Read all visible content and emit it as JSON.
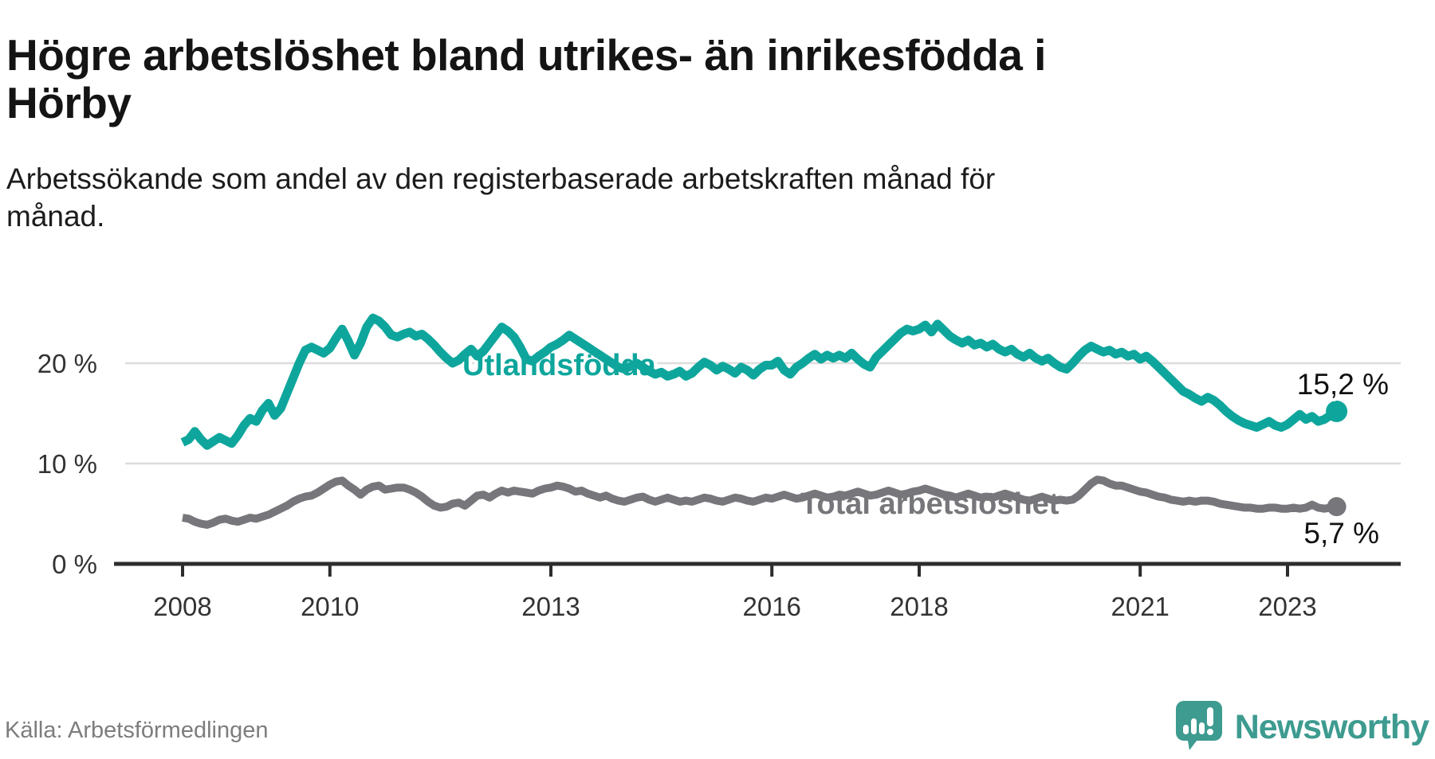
{
  "header": {
    "title": "Högre arbetslöshet bland utrikes- än inrikesfödda i\nHörby",
    "subtitle": "Arbetssökande som andel av den registerbaserade arbetskraften månad för\nmånad."
  },
  "footer": {
    "source": "Källa: Arbetsförmedlingen",
    "brand": "Newsworthy"
  },
  "colors": {
    "foreign_born_line": "#0ea69c",
    "total_line": "#76767b",
    "gridline": "#dcdcdc",
    "axis": "#2d2d2d",
    "tick_label": "#333333",
    "end_label": "#111111",
    "logo_teal": "#3d9b90"
  },
  "chart_data": {
    "type": "line",
    "title": "Högre arbetslöshet bland utrikes- än inrikesfödda i Hörby",
    "subtitle": "Arbetssökande som andel av den registerbaserade arbetskraften månad för månad.",
    "xlabel": "",
    "ylabel": "",
    "grid": true,
    "legend_position": "inline-labels",
    "x_start_year": 2008,
    "x_months_per_step": 1,
    "x_ticks": [
      2008,
      2010,
      2013,
      2016,
      2018,
      2021,
      2023
    ],
    "y_ticks": [
      {
        "value": 0,
        "label": "0 %"
      },
      {
        "value": 10,
        "label": "10 %"
      },
      {
        "value": 20,
        "label": "20 %"
      }
    ],
    "ylim": [
      0,
      29
    ],
    "series": [
      {
        "name": "Utlandsfödda",
        "color": "#0ea69c",
        "end_label": "15,2 %",
        "end_value": 15.2,
        "values": [
          12.1,
          12.4,
          13.2,
          12.4,
          11.8,
          12.2,
          12.6,
          12.3,
          12.0,
          12.8,
          13.8,
          14.5,
          14.2,
          15.3,
          16.0,
          14.8,
          15.5,
          17.0,
          18.5,
          20.0,
          21.3,
          21.6,
          21.3,
          21.0,
          21.5,
          22.5,
          23.4,
          22.2,
          20.8,
          22.0,
          23.6,
          24.5,
          24.2,
          23.6,
          22.8,
          22.6,
          22.9,
          23.1,
          22.7,
          22.9,
          22.4,
          21.8,
          21.1,
          20.5,
          20.0,
          20.3,
          20.9,
          21.4,
          20.7,
          21.2,
          22.0,
          22.8,
          23.6,
          23.2,
          22.6,
          21.6,
          20.4,
          20.2,
          20.7,
          21.1,
          21.6,
          21.9,
          22.3,
          22.8,
          22.4,
          22.0,
          21.6,
          21.2,
          20.8,
          20.4,
          20.0,
          19.6,
          19.4,
          19.7,
          20.0,
          19.6,
          19.2,
          18.9,
          19.1,
          18.7,
          18.9,
          19.2,
          18.7,
          19.0,
          19.6,
          20.1,
          19.8,
          19.3,
          19.7,
          19.4,
          19.0,
          19.6,
          19.3,
          18.8,
          19.4,
          19.8,
          19.8,
          20.2,
          19.3,
          18.9,
          19.6,
          20.0,
          20.5,
          20.9,
          20.4,
          20.8,
          20.5,
          20.8,
          20.5,
          21.0,
          20.4,
          19.9,
          19.6,
          20.6,
          21.2,
          21.8,
          22.4,
          23.0,
          23.4,
          23.2,
          23.4,
          23.8,
          23.1,
          23.9,
          23.3,
          22.7,
          22.3,
          22.0,
          22.3,
          21.8,
          22.0,
          21.6,
          21.9,
          21.4,
          21.1,
          21.4,
          20.9,
          20.6,
          21.0,
          20.5,
          20.2,
          20.5,
          20.0,
          19.6,
          19.4,
          20.0,
          20.7,
          21.3,
          21.7,
          21.4,
          21.1,
          21.3,
          20.9,
          21.1,
          20.7,
          20.9,
          20.4,
          20.7,
          20.2,
          19.6,
          19.0,
          18.4,
          17.8,
          17.2,
          16.9,
          16.5,
          16.2,
          16.6,
          16.3,
          15.8,
          15.2,
          14.7,
          14.3,
          14.0,
          13.8,
          13.6,
          13.9,
          14.2,
          13.8,
          13.6,
          13.9,
          14.4,
          14.9,
          14.4,
          14.7,
          14.2,
          14.4,
          14.8,
          15.2
        ]
      },
      {
        "name": "Total arbetslöshet",
        "color": "#76767b",
        "end_label": "5,7 %",
        "end_value": 5.7,
        "values": [
          4.6,
          4.5,
          4.2,
          4.0,
          3.9,
          4.1,
          4.4,
          4.5,
          4.3,
          4.2,
          4.4,
          4.6,
          4.5,
          4.7,
          4.9,
          5.2,
          5.5,
          5.8,
          6.2,
          6.5,
          6.7,
          6.8,
          7.1,
          7.5,
          7.9,
          8.2,
          8.3,
          7.8,
          7.4,
          6.9,
          7.4,
          7.7,
          7.8,
          7.4,
          7.5,
          7.6,
          7.6,
          7.4,
          7.1,
          6.7,
          6.2,
          5.8,
          5.6,
          5.7,
          6.0,
          6.1,
          5.8,
          6.3,
          6.8,
          6.9,
          6.6,
          7.0,
          7.3,
          7.1,
          7.3,
          7.2,
          7.1,
          7.0,
          7.3,
          7.5,
          7.6,
          7.8,
          7.7,
          7.5,
          7.2,
          7.3,
          7.0,
          6.8,
          6.6,
          6.8,
          6.5,
          6.3,
          6.2,
          6.4,
          6.6,
          6.7,
          6.4,
          6.2,
          6.4,
          6.6,
          6.4,
          6.2,
          6.3,
          6.2,
          6.4,
          6.6,
          6.5,
          6.3,
          6.2,
          6.4,
          6.6,
          6.5,
          6.3,
          6.2,
          6.4,
          6.6,
          6.5,
          6.7,
          6.9,
          6.7,
          6.5,
          6.6,
          6.8,
          7.0,
          6.8,
          6.6,
          6.7,
          6.9,
          6.8,
          7.0,
          7.2,
          7.0,
          6.8,
          6.9,
          7.1,
          7.3,
          7.1,
          6.9,
          7.0,
          7.2,
          7.3,
          7.5,
          7.3,
          7.1,
          6.9,
          6.8,
          6.6,
          6.8,
          7.0,
          6.8,
          6.6,
          6.7,
          6.6,
          6.8,
          7.0,
          6.8,
          6.6,
          6.4,
          6.3,
          6.5,
          6.7,
          6.5,
          6.3,
          6.4,
          6.3,
          6.4,
          6.8,
          7.4,
          8.0,
          8.4,
          8.3,
          8.0,
          7.8,
          7.8,
          7.6,
          7.4,
          7.2,
          7.1,
          6.9,
          6.7,
          6.6,
          6.4,
          6.3,
          6.2,
          6.3,
          6.2,
          6.3,
          6.3,
          6.2,
          6.0,
          5.9,
          5.8,
          5.7,
          5.6,
          5.6,
          5.5,
          5.5,
          5.6,
          5.6,
          5.5,
          5.5,
          5.6,
          5.5,
          5.6,
          5.9,
          5.6,
          5.5,
          5.6,
          5.7
        ]
      }
    ]
  }
}
